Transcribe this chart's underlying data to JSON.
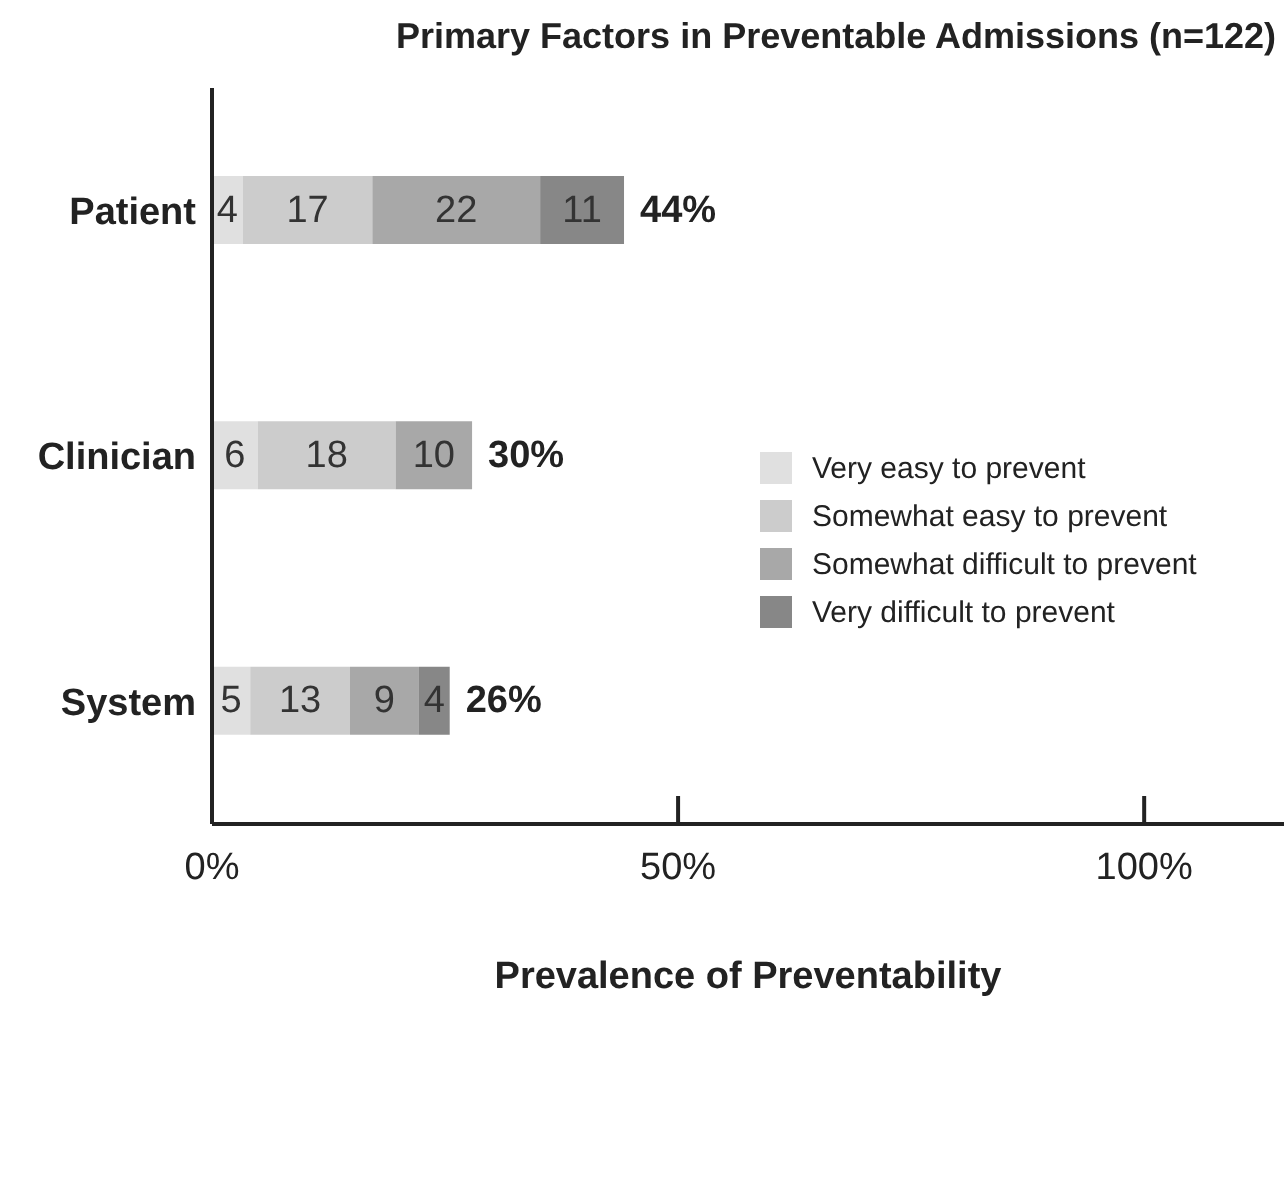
{
  "chart_data": {
    "type": "bar",
    "orientation": "horizontal",
    "stacked": true,
    "title": "Primary Factors in Preventable Admissions (n=122)",
    "xlabel": "Prevalence of Preventability",
    "categories": [
      "Patient",
      "Clinician",
      "System"
    ],
    "series": [
      {
        "name": "Very easy to prevent",
        "color": "#e0e0e0",
        "values": [
          3.3,
          4.9,
          4.1
        ]
      },
      {
        "name": "Somewhat easy to prevent",
        "color": "#cccccc",
        "values": [
          13.9,
          14.8,
          10.7
        ]
      },
      {
        "name": "Somewhat difficult to prevent",
        "color": "#a8a8a8",
        "values": [
          18.0,
          8.2,
          7.4
        ]
      },
      {
        "name": "Very difficult to prevent",
        "color": "#878787",
        "values": [
          9.0,
          null,
          3.3
        ]
      }
    ],
    "annotations": [
      "4",
      "17",
      "22",
      "11",
      "6",
      "18",
      "10",
      "5",
      "13",
      "9",
      "4"
    ],
    "totals": [
      "44%",
      "30%",
      "26%"
    ],
    "xlim": [
      0,
      115
    ],
    "xticks": [
      {
        "value": 0,
        "label": "0%"
      },
      {
        "value": 50,
        "label": "50%"
      },
      {
        "value": 100,
        "label": "100%"
      }
    ],
    "grid": false,
    "legend": "right"
  }
}
